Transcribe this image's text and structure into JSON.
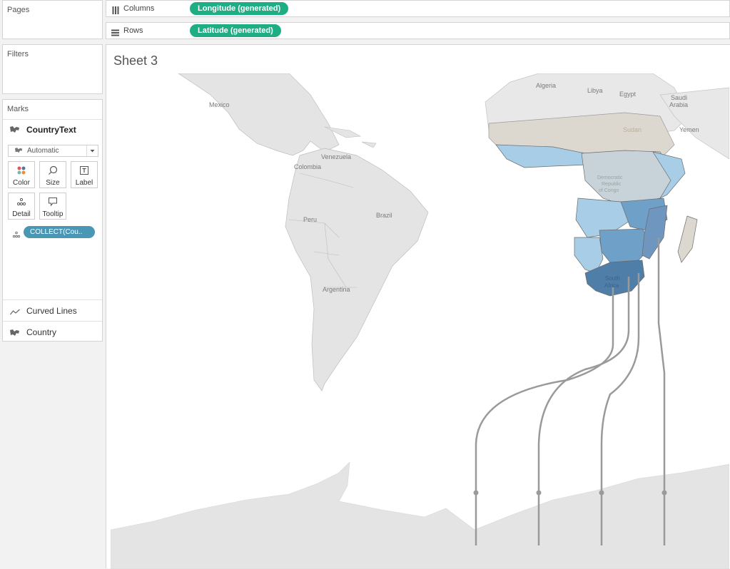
{
  "cards": {
    "pages_title": "Pages",
    "filters_title": "Filters",
    "marks_title": "Marks"
  },
  "marks": {
    "layer_name": "CountryText",
    "mark_type": "Automatic",
    "buttons": {
      "color": "Color",
      "size": "Size",
      "label": "Label",
      "detail": "Detail",
      "tooltip": "Tooltip"
    },
    "field_pill": "COLLECT(Cou..",
    "layers": [
      "Curved Lines",
      "Country"
    ]
  },
  "shelves": {
    "columns_label": "Columns",
    "columns_pill": "Longitude (generated)",
    "rows_label": "Rows",
    "rows_pill": "Latitude (generated)"
  },
  "sheet": {
    "title": "Sheet 3"
  },
  "map": {
    "labels": {
      "mexico": "Mexico",
      "venezuela": "Venezuela",
      "colombia": "Colombia",
      "peru": "Peru",
      "brazil": "Brazil",
      "argentina": "Argentina",
      "algeria": "Algeria",
      "libya": "Libya",
      "egypt": "Egypt",
      "saudi_1": "Saudi",
      "saudi_2": "Arabia",
      "yemen": "Yemen",
      "sudan": "Sudan",
      "drc_1": "Democratic",
      "drc_2": "Republic",
      "drc_3": "of Congo",
      "sa_1": "South",
      "sa_2": "Africa"
    }
  },
  "colors": {
    "pill_green": "#1fae83",
    "pill_blue": "#4a96b5",
    "map_land": "#e4e4e4",
    "choropleth_dark": "#4f7ea8",
    "choropleth_light": "#a8cde6",
    "curve": "#9a9a9a"
  }
}
